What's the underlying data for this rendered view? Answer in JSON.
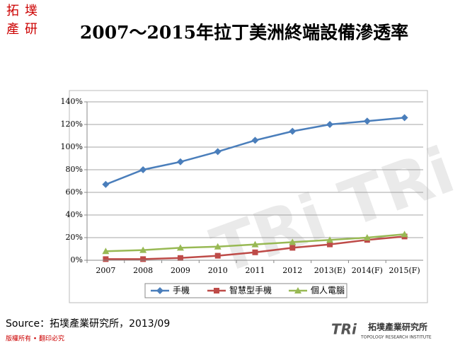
{
  "slide": {
    "logo": [
      "拓",
      "墣",
      "產",
      "研"
    ],
    "source": "Source：拓墣產業研究所，2013/09",
    "footer": "版權所有 • 翻印必究",
    "brand_mark": "TRi",
    "brand_name": "拓墣產業研究所",
    "brand_english": "TOPOLOGY RESEARCH INSTITUTE"
  },
  "chart_data": {
    "type": "line",
    "title": "2007～2015年拉丁美洲終端設備滲透率",
    "categories": [
      "2007",
      "2008",
      "2009",
      "2010",
      "2011",
      "2012",
      "2013(E)",
      "2014(F)",
      "2015(F)"
    ],
    "series": [
      {
        "name": "手機",
        "color": "#4a7ebb",
        "values": [
          67,
          80,
          87,
          96,
          106,
          114,
          120,
          123,
          126
        ]
      },
      {
        "name": "智慧型手機",
        "color": "#be4b48",
        "values": [
          1,
          1,
          2,
          4,
          7,
          11,
          14,
          18,
          21
        ]
      },
      {
        "name": "個人電腦",
        "color": "#98b954",
        "values": [
          8,
          9,
          11,
          12,
          14,
          16,
          18,
          20,
          23
        ]
      }
    ],
    "ylim": [
      0,
      140
    ],
    "yticks": [
      {
        "value": 0,
        "label": "0%"
      },
      {
        "value": 20,
        "label": "20%"
      },
      {
        "value": 40,
        "label": "40%"
      },
      {
        "value": 60,
        "label": "60%"
      },
      {
        "value": 80,
        "label": "80%"
      },
      {
        "value": 100,
        "label": "100%"
      },
      {
        "value": 120,
        "label": "120%"
      },
      {
        "value": 140,
        "label": "140%"
      }
    ],
    "grid": true,
    "legend": "bottom"
  }
}
